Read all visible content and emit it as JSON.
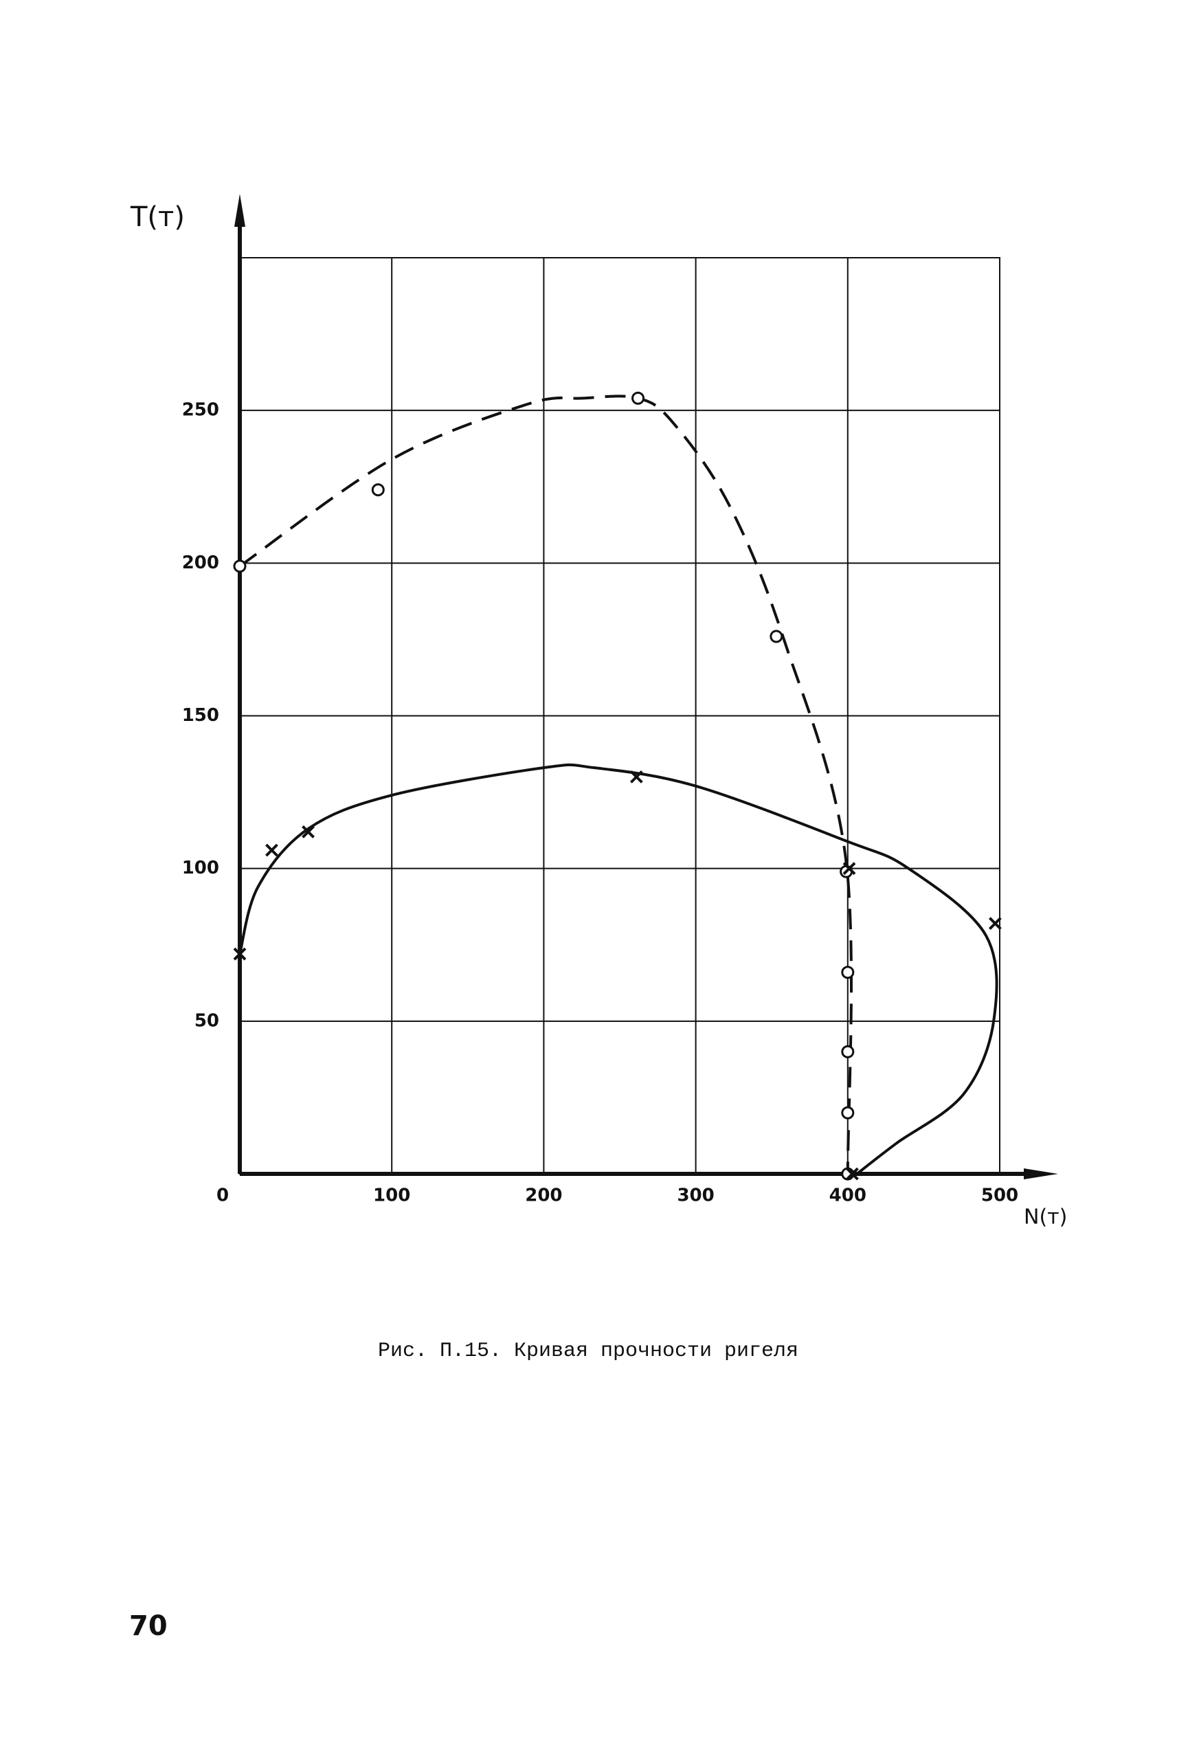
{
  "chart_data": {
    "type": "line",
    "x_label": "N(т)",
    "y_label": "T(т)",
    "xlim": [
      0,
      500
    ],
    "ylim": [
      0,
      300
    ],
    "xticks": [
      0,
      100,
      200,
      300,
      400,
      500
    ],
    "yticks": [
      50,
      100,
      150,
      200,
      250
    ],
    "grid": true,
    "color": "#111111",
    "series": [
      {
        "style": "dashed",
        "x": [
          0,
          100,
          189,
          226,
          262,
          285,
          322,
          358,
          399,
          400
        ],
        "values": [
          199,
          234,
          252,
          254,
          254,
          246,
          219,
          175,
          102,
          0
        ]
      },
      {
        "style": "solid",
        "x": [
          0,
          12,
          45,
          100,
          200,
          233,
          300,
          399,
          440,
          491,
          496,
          476,
          432,
          406
        ],
        "values": [
          72,
          94,
          113,
          124,
          133,
          133,
          127,
          109,
          100,
          78,
          50,
          26,
          10,
          0
        ]
      },
      {
        "style": "markers",
        "marker": "o",
        "x": [
          0,
          91,
          262,
          353,
          399,
          400,
          400,
          400,
          400
        ],
        "values": [
          199,
          224,
          254,
          176,
          99,
          66,
          40,
          20,
          0
        ]
      },
      {
        "style": "markers",
        "marker": "x",
        "x": [
          0,
          21,
          45,
          261,
          401,
          497,
          403
        ],
        "values": [
          72,
          106,
          112,
          130,
          100,
          82,
          0
        ]
      }
    ]
  },
  "caption": "Рис. П.15. Кривая прочности ригеля",
  "page_number": "70"
}
